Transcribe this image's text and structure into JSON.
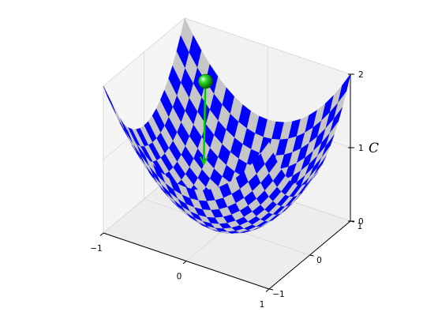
{
  "chart_data": {
    "type": "surface3d",
    "title": "",
    "surface": "z = x^2 + y^2",
    "x_range": [
      -1,
      1
    ],
    "y_range": [
      -1,
      1
    ],
    "zlim": [
      0,
      2
    ],
    "grid_resolution": 21,
    "checker_colors": [
      "#0000ff",
      "#c6c6c6"
    ],
    "pane_color": "#f2f2f2",
    "pane_edge_color": "#dcdcdc",
    "xticks": [
      {
        "value": -1,
        "label": "−1"
      },
      {
        "value": 0,
        "label": "0"
      },
      {
        "value": 1,
        "label": "1"
      }
    ],
    "yticks": [
      {
        "value": -1,
        "label": "−1"
      },
      {
        "value": 0,
        "label": "0"
      },
      {
        "value": 1,
        "label": "1"
      }
    ],
    "zticks": [
      {
        "value": 0,
        "label": "0"
      },
      {
        "value": 1,
        "label": "1"
      },
      {
        "value": 2,
        "label": "2"
      }
    ],
    "zlabel": "C",
    "ball": {
      "color": "#00cc00",
      "position": [
        -0.7,
        0.9,
        1.3
      ],
      "arrow_to": [
        -0.5,
        0.45,
        0.46
      ],
      "arrow_color": "#00cc00"
    }
  }
}
